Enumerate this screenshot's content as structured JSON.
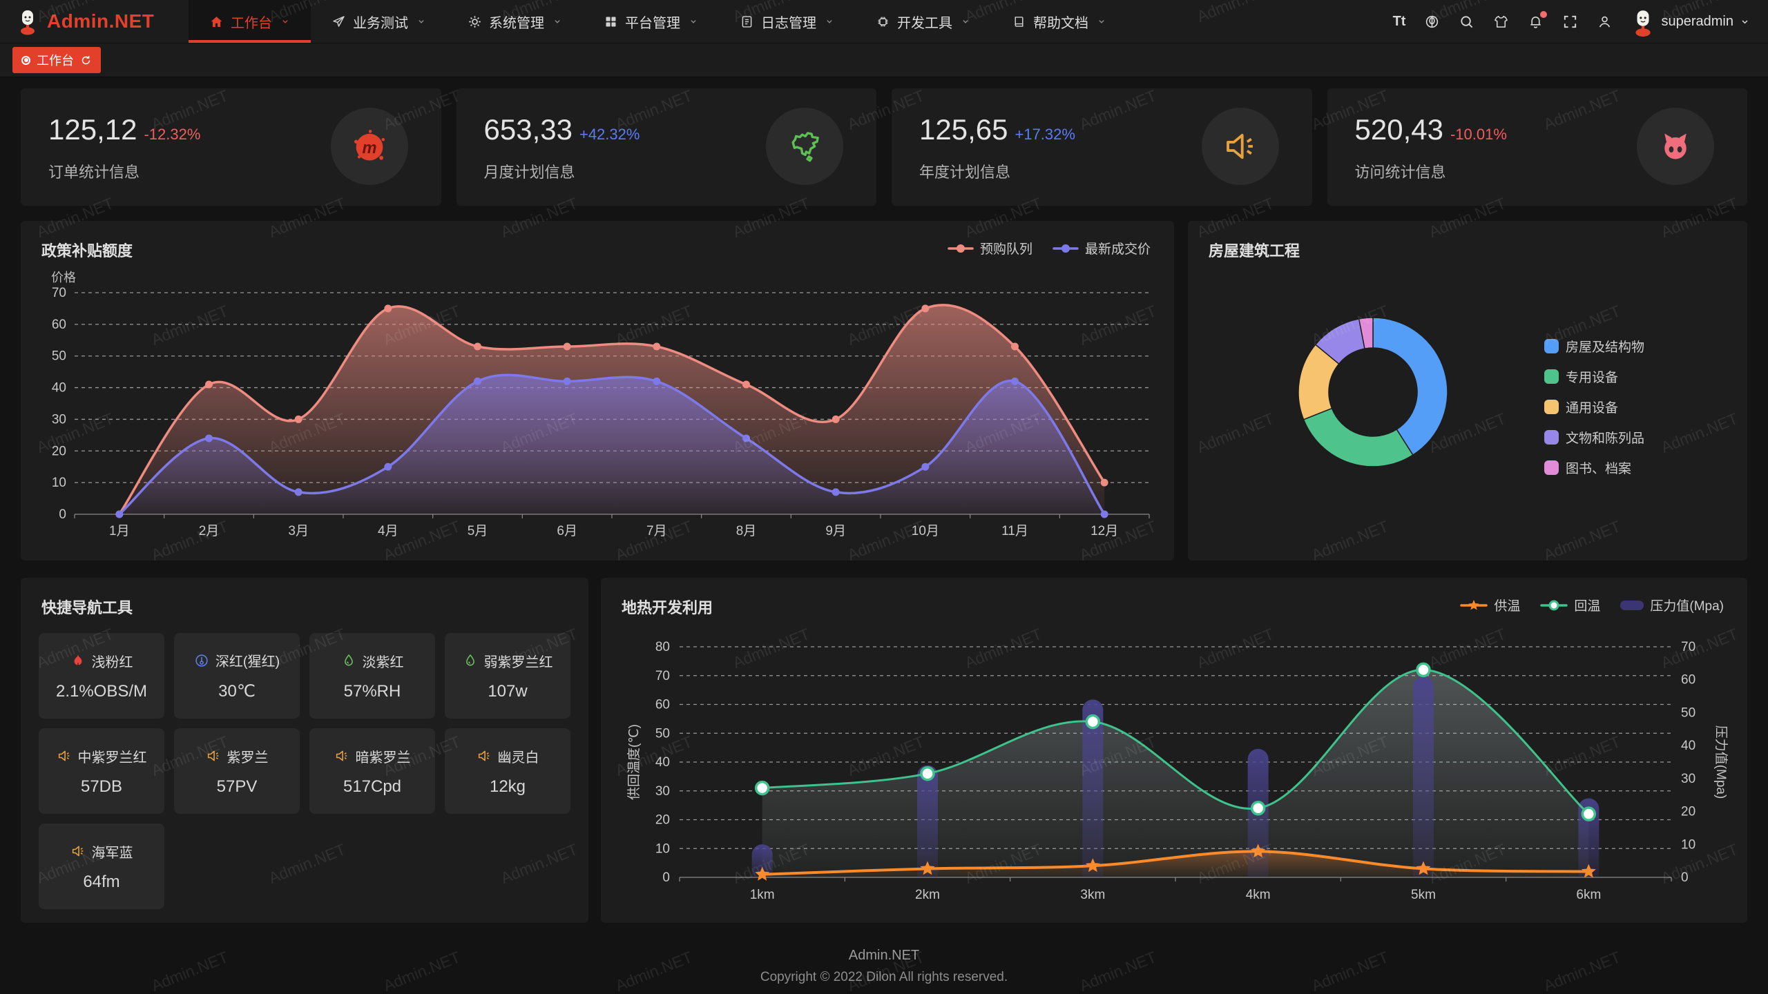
{
  "watermark": {
    "text": "Admin.NET"
  },
  "header": {
    "brand": "Admin.NET",
    "menu": [
      {
        "key": "workbench",
        "label": "工作台",
        "icon": "home-icon",
        "active": true
      },
      {
        "key": "business-test",
        "label": "业务测试",
        "icon": "send-icon",
        "active": false
      },
      {
        "key": "system-mgmt",
        "label": "系统管理",
        "icon": "gear-icon",
        "active": false
      },
      {
        "key": "platform-mgmt",
        "label": "平台管理",
        "icon": "grid-icon",
        "active": false
      },
      {
        "key": "log-mgmt",
        "label": "日志管理",
        "icon": "document-icon",
        "active": false
      },
      {
        "key": "dev-tools",
        "label": "开发工具",
        "icon": "chip-icon",
        "active": false
      },
      {
        "key": "help-docs",
        "label": "帮助文档",
        "icon": "book-icon",
        "active": false
      }
    ],
    "font_size_label": "Tt",
    "notification_badge": true,
    "user": {
      "name": "superadmin"
    }
  },
  "tabbar": {
    "tabs": [
      {
        "label": "工作台",
        "active": true
      }
    ]
  },
  "stats": [
    {
      "key": "orders",
      "value": "125,12",
      "delta": "-12.32%",
      "direction": "down",
      "label": "订单统计信息",
      "icon": "meetup-icon",
      "icon_color": "#e2402a"
    },
    {
      "key": "monthly-plan",
      "value": "653,33",
      "delta": "+42.32%",
      "direction": "up",
      "label": "月度计划信息",
      "icon": "china-map-icon",
      "icon_color": "#5dc054"
    },
    {
      "key": "yearly-plan",
      "value": "125,65",
      "delta": "+17.32%",
      "direction": "up",
      "label": "年度计划信息",
      "icon": "speaker-icon",
      "icon_color": "#e6a23c"
    },
    {
      "key": "visits",
      "value": "520,43",
      "delta": "-10.01%",
      "direction": "down",
      "label": "访问统计信息",
      "icon": "cat-icon",
      "icon_color": "#ef6e7e"
    }
  ],
  "chart_data": [
    {
      "id": "subsidy",
      "type": "line",
      "title": "政策补贴额度",
      "ylabel": "价格",
      "ylim": [
        0,
        70
      ],
      "yticks": [
        0,
        10,
        20,
        30,
        40,
        50,
        60,
        70
      ],
      "grid": "dashed",
      "legend_position": "top-right",
      "categories": [
        "1月",
        "2月",
        "3月",
        "4月",
        "5月",
        "6月",
        "7月",
        "8月",
        "9月",
        "10月",
        "11月",
        "12月"
      ],
      "series": [
        {
          "name": "预购队列",
          "color": "#ee8c82",
          "marker": "circle",
          "area": true,
          "values": [
            0,
            41,
            30,
            65,
            53,
            53,
            53,
            41,
            30,
            65,
            53,
            10
          ]
        },
        {
          "name": "最新成交价",
          "color": "#7e79e8",
          "marker": "circle",
          "area": true,
          "values": [
            0,
            24,
            7,
            15,
            42,
            42,
            42,
            24,
            7,
            15,
            42,
            0
          ]
        }
      ]
    },
    {
      "id": "building",
      "type": "pie",
      "title": "房屋建筑工程",
      "donut": true,
      "legend_position": "right",
      "labels": [
        "房屋及结构物",
        "专用设备",
        "通用设备",
        "文物和陈列品",
        "图书、档案"
      ],
      "values": [
        41,
        28,
        17,
        11,
        3
      ],
      "colors": [
        "#559ef7",
        "#4ec48c",
        "#f7c36e",
        "#9787e8",
        "#e18bd9"
      ]
    },
    {
      "id": "geothermal",
      "type": "line-bar",
      "title": "地热开发利用",
      "categories": [
        "1km",
        "2km",
        "3km",
        "4km",
        "5km",
        "6km"
      ],
      "ylabel_left": "供回温度(℃)",
      "ylim_left": [
        0,
        80
      ],
      "yticks_left": [
        0,
        10,
        20,
        30,
        40,
        50,
        60,
        70,
        80
      ],
      "ylabel_right": "压力值(Mpa)",
      "ylim_right": [
        0,
        70
      ],
      "yticks_right": [
        0,
        10,
        20,
        30,
        40,
        50,
        60,
        70
      ],
      "grid": "dashed",
      "legend_position": "top-right",
      "series": [
        {
          "name": "供温",
          "type": "line",
          "axis": "left",
          "color": "#fb8b2a",
          "marker": "star",
          "area": true,
          "values": [
            1,
            3,
            4,
            9,
            3,
            2
          ]
        },
        {
          "name": "回温",
          "type": "line",
          "axis": "left",
          "color": "#3ec28e",
          "marker": "circle-hollow",
          "area": true,
          "values": [
            31,
            36,
            54,
            24,
            72,
            22
          ]
        },
        {
          "name": "压力值(Mpa)",
          "type": "bar",
          "axis": "right",
          "color": "#4b4590",
          "values": [
            10,
            34,
            54,
            39,
            61,
            24
          ]
        }
      ]
    }
  ],
  "quick_nav": {
    "title": "快捷导航工具",
    "items": [
      {
        "icon": "fire-icon",
        "icon_color": "#e8433f",
        "name": "浅粉红",
        "value": "2.1%OBS/M"
      },
      {
        "icon": "thermometer-icon",
        "icon_color": "#5e85f0",
        "name": "深红(猩红)",
        "value": "30℃"
      },
      {
        "icon": "water-drop-icon",
        "icon_color": "#6abe5e",
        "name": "淡紫红",
        "value": "57%RH"
      },
      {
        "icon": "water-drop-icon",
        "icon_color": "#6abe5e",
        "name": "弱紫罗兰红",
        "value": "107w"
      },
      {
        "icon": "speaker-icon",
        "icon_color": "#e6a23c",
        "name": "中紫罗兰红",
        "value": "57DB"
      },
      {
        "icon": "speaker-icon",
        "icon_color": "#e6a23c",
        "name": "紫罗兰",
        "value": "57PV"
      },
      {
        "icon": "speaker-icon",
        "icon_color": "#e6a23c",
        "name": "暗紫罗兰",
        "value": "517Cpd"
      },
      {
        "icon": "speaker-icon",
        "icon_color": "#e6a23c",
        "name": "幽灵白",
        "value": "12kg"
      },
      {
        "icon": "speaker-icon",
        "icon_color": "#e6a23c",
        "name": "海军蓝",
        "value": "64fm"
      }
    ]
  },
  "footer": {
    "line1": "Admin.NET",
    "line2": "Copyright © 2022 Dilon All rights reserved."
  },
  "colors": {
    "accent": "#e2402a",
    "delta_up": "#5b7bf7",
    "delta_down": "#f25d5d",
    "panel": "#1d1d1d",
    "background": "#131313"
  }
}
